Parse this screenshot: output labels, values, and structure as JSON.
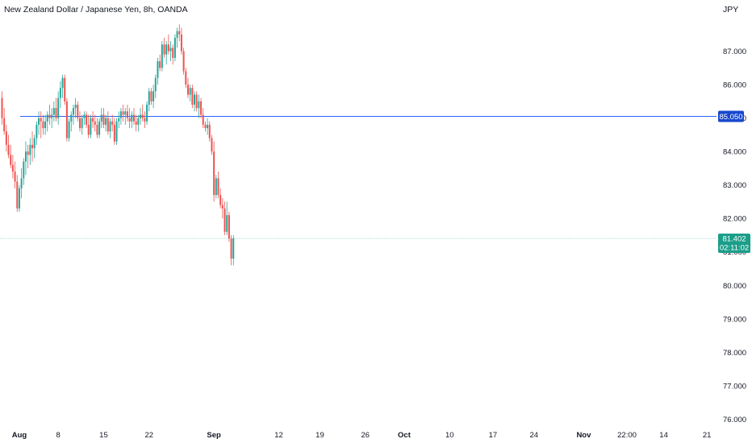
{
  "header": {
    "title": "New Zealand Dollar / Japanese Yen, 8h, OANDA",
    "currency": "JPY"
  },
  "colors": {
    "up": "#26a69a",
    "down": "#ef5350",
    "hline": "#2962ff",
    "hline_label_bg": "#1848cc",
    "current_bg": "#1a9e89",
    "current_line": "#a6dcd3"
  },
  "chart_data": {
    "type": "candlestick",
    "symbol": "NZDJPY",
    "timeframe": "8h",
    "ylim": [
      75.6,
      88.0
    ],
    "y_ticks": [
      "76.000",
      "77.000",
      "78.000",
      "79.000",
      "80.000",
      "81.000",
      "82.000",
      "83.000",
      "84.000",
      "85.000",
      "86.000",
      "87.000"
    ],
    "x_ticks": [
      {
        "label": "Aug",
        "bold": true,
        "bar": 8
      },
      {
        "label": "8",
        "bold": false,
        "bar": 26
      },
      {
        "label": "15",
        "bold": false,
        "bar": 47
      },
      {
        "label": "22",
        "bold": false,
        "bar": 68
      },
      {
        "label": "Sep",
        "bold": true,
        "bar": 98
      },
      {
        "label": "12",
        "bold": false,
        "bar": 128
      },
      {
        "label": "19",
        "bold": false,
        "bar": 147
      },
      {
        "label": "26",
        "bold": false,
        "bar": 168
      },
      {
        "label": "Oct",
        "bold": true,
        "bar": 186
      },
      {
        "label": "10",
        "bold": false,
        "bar": 207
      },
      {
        "label": "17",
        "bold": false,
        "bar": 227
      },
      {
        "label": "24",
        "bold": false,
        "bar": 246
      },
      {
        "label": "Nov",
        "bold": true,
        "bar": 269
      },
      {
        "label": "22:00",
        "bold": false,
        "bar": 289
      },
      {
        "label": "14",
        "bold": false,
        "bar": 306
      },
      {
        "label": "21",
        "bold": false,
        "bar": 326
      }
    ],
    "horizontal_line": {
      "value": 85.05,
      "label": "85.050"
    },
    "current_price": {
      "value": 81.402,
      "label": "81.402",
      "countdown": "02:11:02"
    },
    "candles": [
      [
        85.6,
        85.8,
        84.8,
        85.0
      ],
      [
        85.0,
        85.3,
        84.5,
        84.6
      ],
      [
        84.6,
        84.8,
        84.0,
        84.2
      ],
      [
        84.2,
        84.5,
        83.8,
        83.9
      ],
      [
        83.9,
        84.2,
        83.5,
        83.6
      ],
      [
        83.6,
        83.9,
        83.2,
        83.4
      ],
      [
        83.4,
        83.7,
        82.9,
        83.1
      ],
      [
        83.1,
        83.3,
        82.2,
        82.3
      ],
      [
        82.3,
        83.0,
        82.2,
        82.9
      ],
      [
        82.9,
        83.5,
        82.6,
        83.2
      ],
      [
        83.2,
        83.8,
        83.0,
        83.7
      ],
      [
        83.7,
        84.3,
        83.3,
        84.0
      ],
      [
        84.0,
        84.2,
        83.5,
        83.9
      ],
      [
        83.9,
        84.4,
        83.6,
        84.2
      ],
      [
        84.2,
        84.6,
        83.7,
        84.1
      ],
      [
        84.1,
        84.5,
        83.8,
        84.4
      ],
      [
        84.4,
        84.9,
        84.2,
        84.8
      ],
      [
        84.8,
        85.2,
        84.5,
        85.0
      ],
      [
        85.0,
        85.2,
        84.4,
        84.9
      ],
      [
        84.9,
        85.1,
        84.5,
        84.7
      ],
      [
        84.7,
        85.1,
        84.5,
        84.9
      ],
      [
        84.9,
        85.2,
        84.6,
        85.1
      ],
      [
        85.1,
        85.4,
        84.8,
        85.0
      ],
      [
        85.0,
        85.3,
        84.7,
        85.1
      ],
      [
        85.1,
        85.5,
        84.9,
        85.3
      ],
      [
        85.3,
        85.6,
        84.9,
        85.0
      ],
      [
        85.0,
        85.8,
        84.8,
        85.6
      ],
      [
        85.6,
        86.1,
        85.3,
        85.9
      ],
      [
        85.9,
        86.3,
        85.6,
        86.2
      ],
      [
        86.2,
        86.3,
        85.4,
        85.5
      ],
      [
        85.5,
        85.6,
        84.3,
        84.4
      ],
      [
        84.4,
        85.0,
        84.3,
        84.9
      ],
      [
        84.9,
        85.2,
        84.6,
        85.1
      ],
      [
        85.1,
        85.4,
        84.8,
        85.3
      ],
      [
        85.3,
        85.6,
        85.0,
        85.4
      ],
      [
        85.4,
        85.5,
        84.9,
        85.0
      ],
      [
        85.0,
        85.2,
        84.6,
        84.7
      ],
      [
        84.7,
        85.1,
        84.5,
        85.0
      ],
      [
        85.0,
        85.2,
        84.8,
        85.1
      ],
      [
        85.1,
        85.2,
        84.7,
        84.8
      ],
      [
        84.8,
        85.1,
        84.4,
        84.5
      ],
      [
        84.5,
        85.1,
        84.4,
        85.0
      ],
      [
        85.0,
        85.2,
        84.7,
        84.9
      ],
      [
        84.9,
        85.1,
        84.6,
        84.8
      ],
      [
        84.8,
        85.0,
        84.4,
        84.5
      ],
      [
        84.5,
        85.0,
        84.4,
        84.9
      ],
      [
        84.9,
        85.3,
        84.7,
        85.1
      ],
      [
        85.1,
        85.3,
        84.7,
        84.8
      ],
      [
        84.8,
        85.1,
        84.6,
        85.0
      ],
      [
        85.0,
        85.2,
        84.5,
        84.6
      ],
      [
        84.6,
        85.0,
        84.4,
        84.9
      ],
      [
        84.9,
        85.1,
        84.6,
        84.8
      ],
      [
        84.8,
        85.0,
        84.2,
        84.3
      ],
      [
        84.3,
        85.0,
        84.2,
        84.9
      ],
      [
        84.9,
        85.2,
        84.7,
        85.0
      ],
      [
        85.0,
        85.3,
        84.8,
        85.2
      ],
      [
        85.2,
        85.4,
        84.9,
        85.1
      ],
      [
        85.1,
        85.3,
        84.8,
        85.2
      ],
      [
        85.2,
        85.4,
        84.9,
        85.0
      ],
      [
        85.0,
        85.3,
        84.7,
        84.9
      ],
      [
        84.9,
        85.2,
        84.7,
        85.1
      ],
      [
        85.1,
        85.3,
        84.8,
        84.9
      ],
      [
        84.9,
        85.1,
        84.6,
        84.8
      ],
      [
        84.8,
        85.1,
        84.6,
        85.0
      ],
      [
        85.0,
        85.3,
        84.8,
        85.1
      ],
      [
        85.1,
        85.4,
        84.9,
        85.0
      ],
      [
        85.0,
        85.2,
        84.7,
        84.9
      ],
      [
        84.9,
        85.5,
        84.8,
        85.4
      ],
      [
        85.4,
        85.9,
        85.2,
        85.8
      ],
      [
        85.8,
        85.9,
        85.4,
        85.5
      ],
      [
        85.5,
        86.0,
        85.3,
        85.8
      ],
      [
        85.8,
        86.3,
        85.6,
        86.2
      ],
      [
        86.2,
        86.8,
        86.0,
        86.7
      ],
      [
        86.7,
        86.9,
        86.4,
        86.5
      ],
      [
        86.5,
        87.3,
        86.4,
        87.2
      ],
      [
        87.2,
        87.4,
        86.8,
        86.9
      ],
      [
        86.9,
        87.3,
        86.6,
        87.2
      ],
      [
        87.2,
        87.5,
        86.9,
        87.0
      ],
      [
        87.0,
        87.3,
        86.7,
        87.1
      ],
      [
        87.1,
        87.2,
        86.6,
        86.8
      ],
      [
        86.8,
        87.5,
        86.7,
        87.4
      ],
      [
        87.4,
        87.7,
        87.1,
        87.6
      ],
      [
        87.6,
        87.8,
        87.3,
        87.5
      ],
      [
        87.5,
        87.7,
        86.9,
        87.0
      ],
      [
        87.0,
        87.1,
        86.3,
        86.4
      ],
      [
        86.4,
        86.5,
        85.9,
        86.0
      ],
      [
        86.0,
        86.2,
        85.6,
        85.7
      ],
      [
        85.7,
        86.0,
        85.5,
        85.9
      ],
      [
        85.9,
        86.0,
        85.3,
        85.4
      ],
      [
        85.4,
        85.8,
        85.2,
        85.7
      ],
      [
        85.7,
        85.8,
        85.2,
        85.3
      ],
      [
        85.3,
        85.7,
        85.0,
        85.5
      ],
      [
        85.5,
        85.6,
        85.0,
        85.1
      ],
      [
        85.1,
        85.3,
        84.7,
        84.8
      ],
      [
        84.8,
        84.9,
        84.6,
        84.7
      ],
      [
        84.7,
        85.0,
        84.5,
        84.8
      ],
      [
        84.8,
        84.9,
        84.3,
        84.4
      ],
      [
        84.4,
        84.5,
        83.9,
        84.0
      ],
      [
        84.0,
        84.3,
        82.5,
        82.7
      ],
      [
        82.7,
        83.3,
        82.6,
        83.2
      ],
      [
        83.2,
        83.4,
        82.6,
        82.7
      ],
      [
        82.7,
        82.9,
        82.3,
        82.4
      ],
      [
        82.4,
        82.6,
        82.0,
        82.3
      ],
      [
        82.3,
        82.5,
        81.5,
        81.6
      ],
      [
        81.6,
        82.5,
        81.5,
        82.1
      ],
      [
        82.1,
        82.2,
        81.3,
        81.4
      ],
      [
        81.4,
        81.5,
        80.6,
        80.8
      ],
      [
        80.8,
        81.5,
        80.6,
        81.402
      ]
    ]
  }
}
